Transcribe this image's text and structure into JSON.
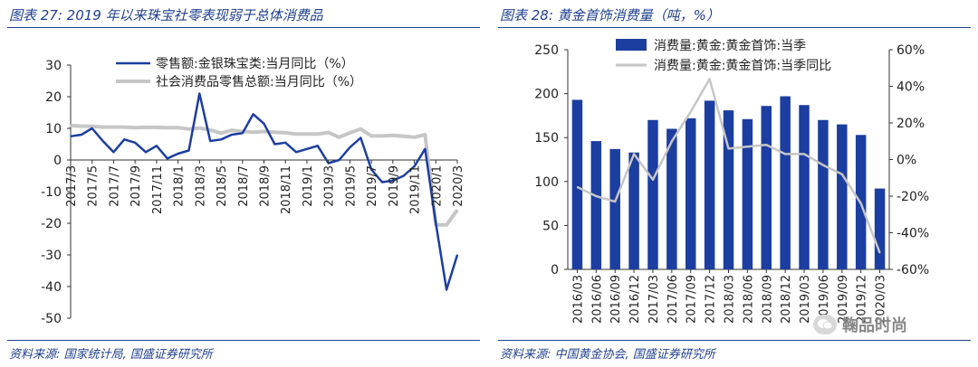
{
  "left": {
    "title": "图表 27: 2019 年以来珠宝社零表现弱于总体消费品",
    "source": "资料来源: 国家统计局, 国盛证券研究所"
  },
  "right": {
    "title": "图表 28: 黄金首饰消费量（吨，%）",
    "source": "资料来源: 中国黄金协会, 国盛证券研究所"
  },
  "watermark": {
    "text": "鞠品时尚",
    "icon": "wechat-icon"
  },
  "colors": {
    "blue": "#1c3ea0",
    "gray": "#c6c6c6",
    "title": "#1f3f8f"
  },
  "chart_data": [
    {
      "type": "line",
      "title": "",
      "xlabel": "",
      "ylabel": "",
      "ylim": [
        -50,
        30
      ],
      "yticks": [
        30,
        20,
        10,
        0,
        -10,
        -20,
        -30,
        -40,
        -50
      ],
      "x_tick_labels": [
        "2017/3",
        "2017/5",
        "2017/7",
        "2017/9",
        "2017/11",
        "2018/1",
        "2018/3",
        "2018/5",
        "2018/7",
        "2018/9",
        "2018/11",
        "2019/1",
        "2019/3",
        "2019/5",
        "2019/7",
        "2019/9",
        "2019/11",
        "2020/1",
        "2020/3"
      ],
      "legend_position": "top-center",
      "series": [
        {
          "name": "零售额:金银珠宝类:当月同比（%）",
          "color": "#1c3ea0",
          "values": [
            7.5,
            8,
            10,
            6,
            2.5,
            6.5,
            5.5,
            2.5,
            4.5,
            0.5,
            2,
            3,
            21,
            6,
            6.5,
            8,
            8.5,
            14.5,
            11.5,
            5,
            5.5,
            2.5,
            3.5,
            4.5,
            -1,
            0,
            4,
            7,
            -3,
            -7,
            -6.5,
            -5,
            -2,
            3.5,
            -20,
            -41,
            -30
          ]
        },
        {
          "name": "社会消费品零售总额:当月同比（%）",
          "color": "#c6c6c6",
          "values": [
            10.9,
            10.7,
            10.7,
            10.4,
            10.4,
            10.4,
            10.2,
            10.3,
            10.3,
            10.2,
            10.2,
            9.8,
            10.1,
            9.5,
            8.5,
            9.4,
            9,
            8.8,
            9,
            8.8,
            8.6,
            8.2,
            8.2,
            8.2,
            8.7,
            7.2,
            8.6,
            9.8,
            7.6,
            7.6,
            7.8,
            7.5,
            7.2,
            8,
            -20.5,
            -20.5,
            -15.8
          ]
        }
      ]
    },
    {
      "type": "bar",
      "title": "",
      "xlabel": "",
      "ylabel": "",
      "ylim": [
        0,
        250
      ],
      "y2lim": [
        -60,
        60
      ],
      "yticks": [
        0,
        50,
        100,
        150,
        200,
        250
      ],
      "y2ticks": [
        "60%",
        "40%",
        "20%",
        "0%",
        "-20%",
        "-40%",
        "-60%"
      ],
      "categories": [
        "2016/03",
        "2016/06",
        "2016/09",
        "2016/12",
        "2017/03",
        "2017/06",
        "2017/09",
        "2017/12",
        "2018/03",
        "2018/06",
        "2018/09",
        "2018/12",
        "2019/03",
        "2019/06",
        "2019/09",
        "2019/12",
        "2020/03"
      ],
      "legend_position": "top-center",
      "series": [
        {
          "name": "消费量:黄金:黄金首饰:当季",
          "color": "#1c3ea0",
          "axis": "left",
          "values": [
            193,
            146,
            137,
            133,
            170,
            160,
            172,
            192,
            181,
            171,
            186,
            197,
            187,
            170,
            165,
            153,
            92
          ]
        },
        {
          "name": "消费量:黄金:黄金首饰:当季同比",
          "color": "#c6c6c6",
          "axis": "right",
          "values": [
            -15,
            -20,
            -23,
            3,
            -11,
            10,
            26,
            44,
            6,
            7,
            8,
            3,
            3,
            -3,
            -8,
            -24,
            -51
          ]
        }
      ]
    }
  ]
}
